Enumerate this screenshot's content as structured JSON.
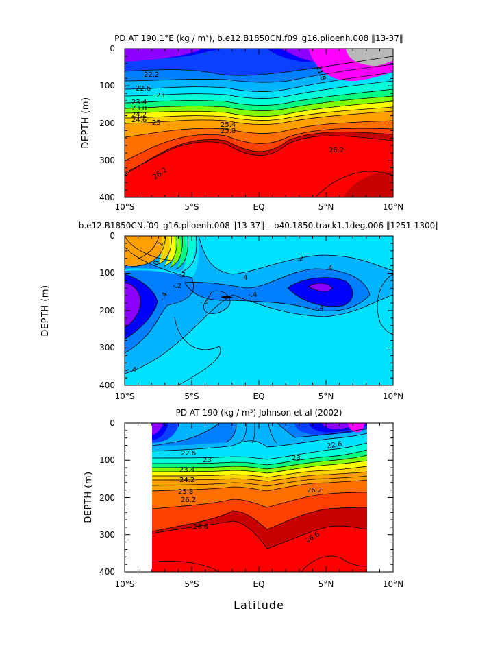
{
  "colors": {
    "gray": "#b9b9b9",
    "magenta": "#ff00ff",
    "purple": "#8c00ff",
    "blue1": "#0000ff",
    "blue2": "#0a40ff",
    "blue3": "#0080ff",
    "cyan1": "#00b4ff",
    "cyan2": "#00e0ff",
    "teal": "#00ffd8",
    "green": "#00ff80",
    "lime": "#80ff00",
    "yellow": "#ffff00",
    "yorange": "#ffd000",
    "orange": "#ffa000",
    "dorange": "#ff7000",
    "red1": "#ff4000",
    "red2": "#ff0000",
    "dred": "#c80000"
  },
  "chart_data": [
    {
      "type": "contour",
      "title": "PD AT 190.1°E (kg / m³), b.e12.B1850CN.f09_g16.plioenh.008 ‖13-37‖",
      "xlabel": "",
      "ylabel": "DEPTH (m)",
      "x_ticks": [
        "10°S",
        "5°S",
        "EQ",
        "5°N",
        "10°N"
      ],
      "y_ticks": [
        "0",
        "100",
        "200",
        "300",
        "400"
      ],
      "xlim": [
        -10,
        10
      ],
      "ylim": [
        400,
        0
      ],
      "contour_labels": [
        "21.8",
        "22.2",
        "22.6",
        "23",
        "23.4",
        "23.8",
        "24.2",
        "24.6",
        "25",
        "25.4",
        "25.8",
        "26.2",
        "26.2"
      ]
    },
    {
      "type": "contour",
      "title": "b.e12.B1850CN.f09_g16.plioenh.008 ‖13-37‖ – b40.1850.track1.1deg.006 ‖1251-1300‖",
      "xlabel": "",
      "ylabel": "DEPTH (m)",
      "x_ticks": [
        "10°S",
        "5°S",
        "EQ",
        "5°N",
        "10°N"
      ],
      "y_ticks": [
        "0",
        "100",
        "200",
        "300",
        "400"
      ],
      "xlim": [
        -10,
        10
      ],
      "ylim": [
        400,
        0
      ],
      "contour_labels": [
        "2",
        "0",
        "-.2",
        "-.2",
        ".4",
        "-.4",
        ".4",
        "-.4",
        "-.2",
        "-.4",
        "-.4",
        "-.2"
      ]
    },
    {
      "type": "contour",
      "title": "PD AT 190 (kg / m³) Johnson et al (2002)",
      "xlabel": "Latitude",
      "ylabel": "DEPTH (m)",
      "x_ticks": [
        "10°S",
        "5°S",
        "EQ",
        "5°N",
        "10°N"
      ],
      "y_ticks": [
        "0",
        "100",
        "200",
        "300",
        "400"
      ],
      "xlim": [
        -10,
        10
      ],
      "ylim": [
        400,
        0
      ],
      "data_xrange": [
        -8,
        8
      ],
      "contour_labels": [
        "22.6",
        "22.6",
        "23",
        "23",
        "23.4",
        "24.2",
        "25.8",
        "26.2",
        "26.2",
        "26.6",
        "26.6"
      ]
    }
  ]
}
